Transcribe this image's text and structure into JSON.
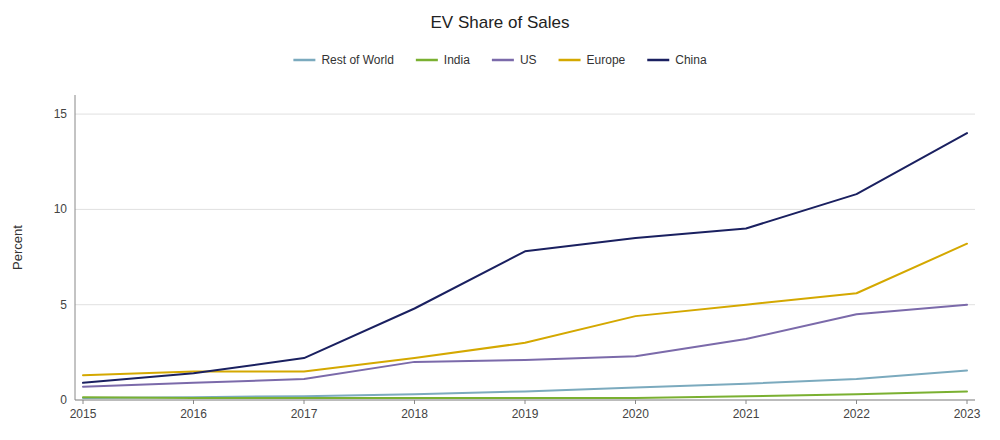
{
  "chart_data": {
    "type": "line",
    "title": "EV Share of Sales",
    "y_label": "Percent",
    "x": [
      2015,
      2016,
      2017,
      2018,
      2019,
      2020,
      2021,
      2022,
      2023
    ],
    "series": [
      {
        "name": "Rest of World",
        "color": "#7baabe",
        "values": [
          0.1,
          0.15,
          0.2,
          0.3,
          0.45,
          0.65,
          0.85,
          1.1,
          1.55
        ]
      },
      {
        "name": "India",
        "color": "#7ab031",
        "values": [
          0.15,
          0.1,
          0.1,
          0.1,
          0.1,
          0.1,
          0.2,
          0.3,
          0.45
        ]
      },
      {
        "name": "US",
        "color": "#7b6aaa",
        "values": [
          0.7,
          0.9,
          1.1,
          2.0,
          2.1,
          2.3,
          3.2,
          4.5,
          5.0
        ]
      },
      {
        "name": "Europe",
        "color": "#d4a800",
        "values": [
          1.3,
          1.5,
          1.5,
          2.2,
          3.0,
          4.4,
          5.0,
          5.6,
          8.2
        ]
      },
      {
        "name": "China",
        "color": "#1a2060",
        "values": [
          0.9,
          1.4,
          2.2,
          4.8,
          7.8,
          8.5,
          9.0,
          10.8,
          14.0
        ]
      }
    ],
    "xlim": [
      2015,
      2023
    ],
    "ylim": [
      0,
      16
    ],
    "yticks": [
      0,
      5,
      10,
      15
    ],
    "xticks": [
      2015,
      2016,
      2017,
      2018,
      2019,
      2020,
      2021,
      2022,
      2023
    ],
    "grid": true,
    "legend": "top"
  }
}
